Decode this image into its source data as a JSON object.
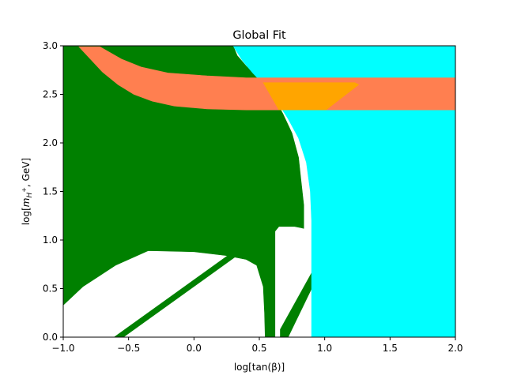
{
  "chart_data": {
    "type": "region-map",
    "title": "Global Fit",
    "xlabel": "log[tan(β)]",
    "ylabel": "log[m_{H+}, GeV]",
    "ylabel_display": {
      "prefix": "log[",
      "var": "m",
      "sub": "H",
      "sup": "+",
      "suffix": ", GeV]"
    },
    "xlim": [
      -1.0,
      2.0
    ],
    "ylim": [
      0.0,
      3.0
    ],
    "grid": false,
    "legend": false,
    "x_ticks": [
      -1.0,
      -0.5,
      0.0,
      0.5,
      1.0,
      1.5,
      2.0
    ],
    "x_tick_labels": [
      "−1.0",
      "−0.5",
      "0.0",
      "0.5",
      "1.0",
      "1.5",
      "2.0"
    ],
    "y_ticks": [
      0.0,
      0.5,
      1.0,
      1.5,
      2.0,
      2.5,
      3.0
    ],
    "y_tick_labels": [
      "0.0",
      "0.5",
      "1.0",
      "1.5",
      "2.0",
      "2.5",
      "3.0"
    ],
    "regions": [
      {
        "id": "green-allowed",
        "color": "#008000",
        "polygons": [
          [
            [
              -1.0,
              0.33
            ],
            [
              -0.85,
              0.52
            ],
            [
              -0.6,
              0.74
            ],
            [
              -0.35,
              0.89
            ],
            [
              0.0,
              0.88
            ],
            [
              0.25,
              0.84
            ],
            [
              0.4,
              0.8
            ],
            [
              0.48,
              0.74
            ],
            [
              0.53,
              0.52
            ],
            [
              0.54,
              0.25
            ],
            [
              0.545,
              0.0
            ],
            [
              0.62,
              0.0
            ],
            [
              0.62,
              1.09
            ],
            [
              0.65,
              1.14
            ],
            [
              0.77,
              1.14
            ],
            [
              0.84,
              1.12
            ],
            [
              0.84,
              1.36
            ],
            [
              0.82,
              1.6
            ],
            [
              0.8,
              1.85
            ],
            [
              0.75,
              2.1
            ],
            [
              0.68,
              2.3
            ],
            [
              0.6,
              2.5
            ],
            [
              0.5,
              2.66
            ],
            [
              0.4,
              2.79
            ],
            [
              0.33,
              2.9
            ],
            [
              0.3,
              3.0
            ],
            [
              -1.0,
              3.0
            ]
          ]
        ]
      },
      {
        "id": "green-diagonal-band",
        "color": "#008000",
        "polygons": [
          [
            [
              -0.61,
              0.0
            ],
            [
              -0.54,
              0.0
            ],
            [
              0.35,
              0.86
            ],
            [
              0.28,
              0.86
            ]
          ]
        ]
      },
      {
        "id": "green-lower-band",
        "color": "#008000",
        "polygons": [
          [
            [
              0.66,
              0.0
            ],
            [
              0.72,
              0.0
            ],
            [
              0.9,
              0.5
            ],
            [
              0.9,
              0.66
            ],
            [
              0.66,
              0.08
            ]
          ]
        ]
      },
      {
        "id": "cyan-region",
        "color": "#00ffff",
        "polygons": [
          [
            [
              0.3,
              3.0
            ],
            [
              2.0,
              3.0
            ],
            [
              2.0,
              0.0
            ],
            [
              0.9,
              0.0
            ],
            [
              0.9,
              0.66
            ],
            [
              0.9,
              1.2
            ],
            [
              0.89,
              1.5
            ],
            [
              0.86,
              1.8
            ],
            [
              0.8,
              2.05
            ],
            [
              0.72,
              2.25
            ],
            [
              0.64,
              2.42
            ],
            [
              0.55,
              2.58
            ],
            [
              0.45,
              2.72
            ],
            [
              0.37,
              2.85
            ]
          ]
        ]
      },
      {
        "id": "salmon-band",
        "color": "#ff7f50",
        "polygons": [
          [
            [
              -0.88,
              2.99
            ],
            [
              -0.72,
              2.99
            ],
            [
              -0.55,
              2.86
            ],
            [
              -0.4,
              2.78
            ],
            [
              -0.2,
              2.72
            ],
            [
              0.1,
              2.69
            ],
            [
              0.4,
              2.67
            ],
            [
              2.0,
              2.67
            ],
            [
              2.0,
              2.34
            ],
            [
              0.4,
              2.34
            ],
            [
              0.1,
              2.35
            ],
            [
              -0.15,
              2.38
            ],
            [
              -0.32,
              2.43
            ],
            [
              -0.46,
              2.5
            ],
            [
              -0.58,
              2.6
            ],
            [
              -0.7,
              2.73
            ]
          ]
        ]
      },
      {
        "id": "orange-overlap",
        "color": "#ffa500",
        "polygons": [
          [
            [
              0.53,
              2.62
            ],
            [
              1.23,
              2.62
            ],
            [
              1.26,
              2.6
            ],
            [
              1.01,
              2.34
            ],
            [
              0.65,
              2.34
            ]
          ]
        ]
      }
    ]
  }
}
